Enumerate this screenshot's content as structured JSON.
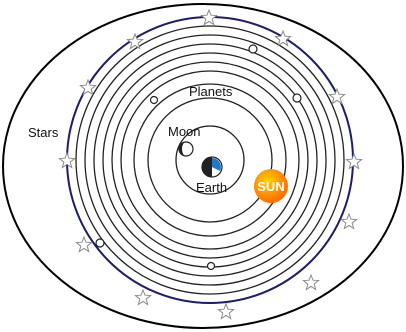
{
  "labels": {
    "stars": "Stars",
    "planets": "Planets",
    "moon": "Moon",
    "earth": "Earth",
    "sun": "SUN"
  },
  "colors": {
    "outline": "#000000",
    "star_sphere": "#1c1c6e",
    "star_fill": "#ffffff",
    "star_stroke": "#8a8a8a",
    "sun_inner": "#ffd000",
    "sun_outer": "#ff6a00",
    "sun_text": "#ffffff",
    "earth_ocean": "#1f78c8",
    "body_dark": "#222222"
  }
}
